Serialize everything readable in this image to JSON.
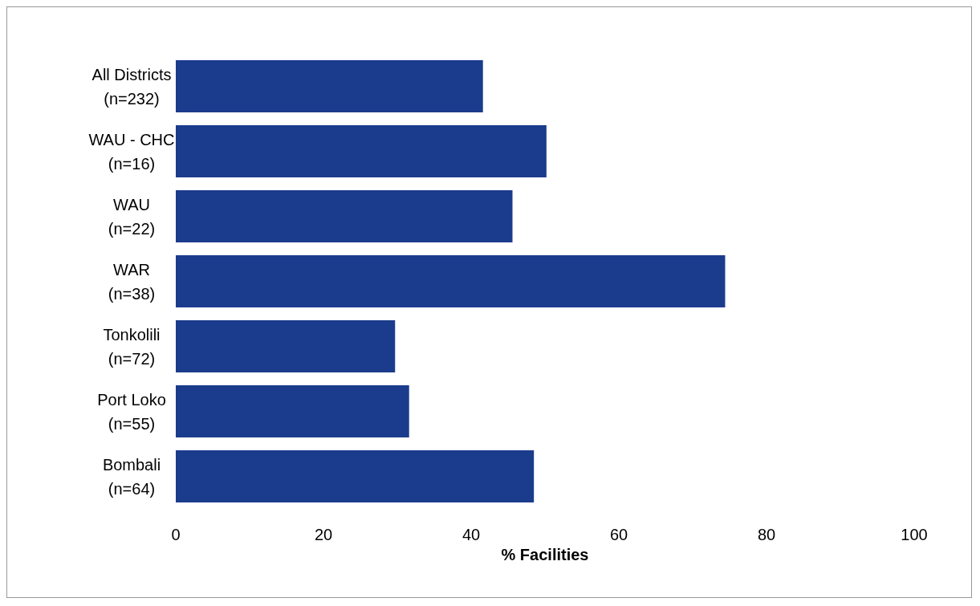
{
  "chart_data": {
    "type": "bar",
    "orientation": "horizontal",
    "xlabel": "% Facilities",
    "categories": [
      "All Districts\n(n=232)",
      "WAU - CHC\n(n=16)",
      "WAU\n(n=22)",
      "WAR\n(n=38)",
      "Tonkolili\n(n=72)",
      "Port Loko\n(n=55)",
      "Bombali\n(n=64)"
    ],
    "values": [
      41.6,
      50.2,
      45.6,
      74.4,
      29.7,
      31.6,
      48.5
    ],
    "color": "#1b3c8c",
    "xlim": [
      0,
      100
    ],
    "xticks": [
      0,
      20,
      40,
      60,
      80,
      100
    ],
    "grid": false
  }
}
